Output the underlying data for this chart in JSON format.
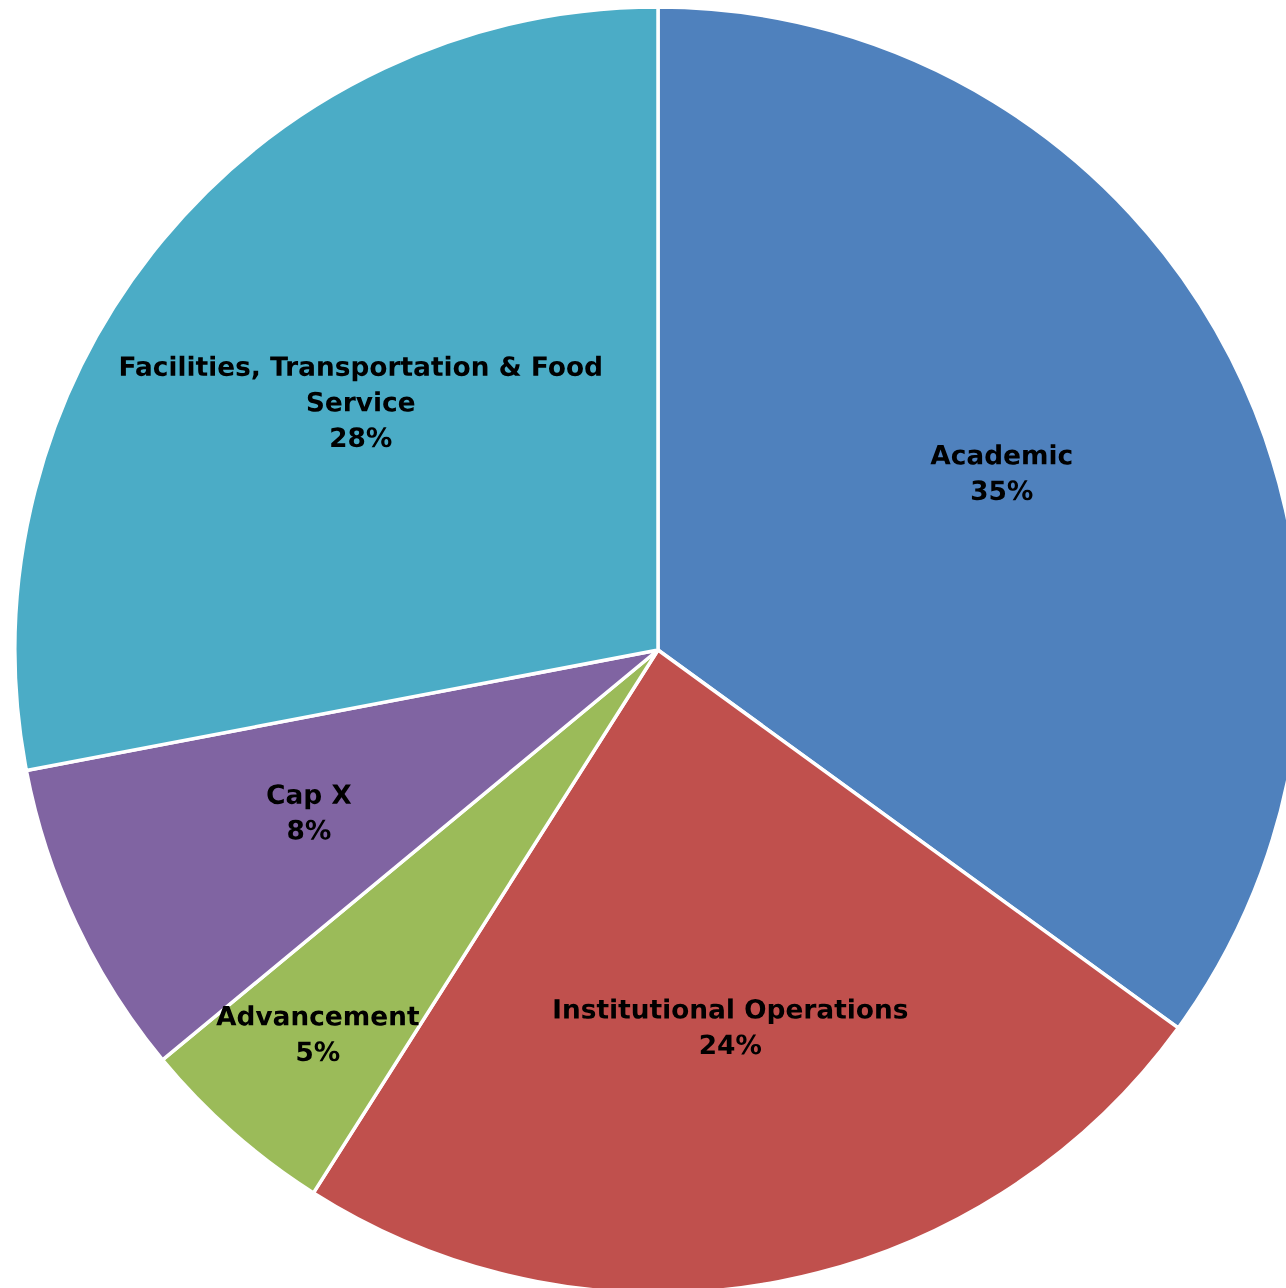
{
  "chart_data": {
    "type": "pie",
    "categories": [
      "Academic",
      "Institutional Operations",
      "Advancement",
      "Cap X",
      "Facilities, Transportation & Food\nService"
    ],
    "values": [
      35,
      24,
      5,
      8,
      28
    ],
    "value_labels": [
      "35%",
      "24%",
      "5%",
      "8%",
      "28%"
    ],
    "colors": [
      "#4f81bd",
      "#c0504d",
      "#9bbb59",
      "#8064a2",
      "#4bacc6"
    ]
  }
}
